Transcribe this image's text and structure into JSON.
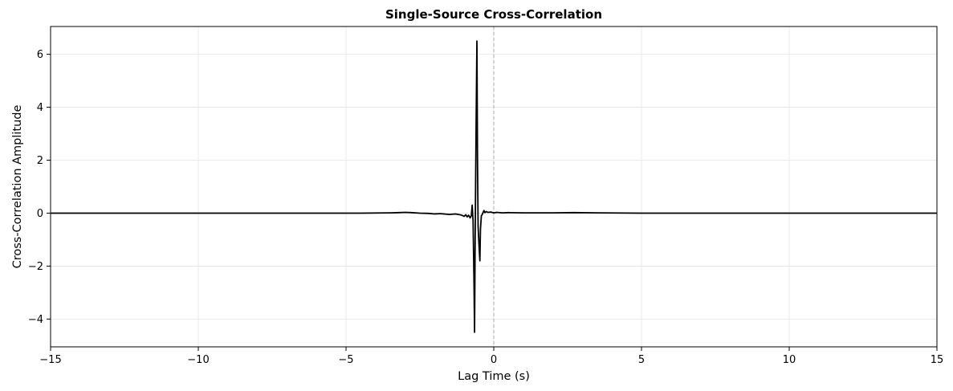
{
  "chart_data": {
    "type": "line",
    "title": "Single-Source Cross-Correlation",
    "xlabel": "Lag Time (s)",
    "ylabel": "Cross-Correlation Amplitude",
    "xlim": [
      -15,
      15
    ],
    "ylim": [
      -5.05,
      7.05
    ],
    "xticks": [
      -15,
      -10,
      -5,
      0,
      5,
      10,
      15
    ],
    "xtick_labels": [
      "−15",
      "−10",
      "−5",
      "0",
      "5",
      "10",
      "15"
    ],
    "yticks": [
      -4,
      -2,
      0,
      2,
      4,
      6
    ],
    "ytick_labels": [
      "−4",
      "−2",
      "0",
      "2",
      "4",
      "6"
    ],
    "grid": true,
    "reference_line": {
      "x": 0,
      "style": "dashed",
      "color": "#aaaaaa"
    },
    "series": [
      {
        "color": "#000000",
        "x": [
          -15,
          -12,
          -10,
          -8,
          -6,
          -4.5,
          -3.5,
          -3.2,
          -3.0,
          -2.8,
          -2.5,
          -2.2,
          -2.0,
          -1.8,
          -1.5,
          -1.3,
          -1.1,
          -1.0,
          -0.95,
          -0.9,
          -0.85,
          -0.8,
          -0.76,
          -0.73,
          -0.7,
          -0.67,
          -0.65,
          -0.63,
          -0.6,
          -0.57,
          -0.55,
          -0.53,
          -0.5,
          -0.47,
          -0.45,
          -0.42,
          -0.39,
          -0.36,
          -0.33,
          -0.3,
          -0.25,
          -0.2,
          -0.1,
          0.0,
          0.1,
          0.3,
          0.5,
          1.0,
          2.0,
          2.7,
          3.5,
          5.0,
          8.0,
          12.0,
          15.0
        ],
        "y": [
          0.0,
          0.0,
          0.0,
          0.0,
          0.0,
          0.0,
          0.01,
          0.02,
          0.03,
          0.02,
          0.0,
          -0.01,
          -0.03,
          -0.02,
          -0.05,
          -0.03,
          -0.07,
          -0.12,
          -0.06,
          -0.14,
          -0.08,
          -0.18,
          -0.1,
          0.3,
          -0.3,
          -2.5,
          -4.5,
          -1.0,
          3.0,
          6.5,
          2.0,
          -0.5,
          -1.2,
          -1.8,
          -0.6,
          -0.1,
          -0.05,
          0.03,
          0.1,
          0.02,
          0.06,
          0.03,
          0.04,
          0.01,
          0.03,
          0.01,
          0.02,
          0.01,
          0.01,
          0.02,
          0.01,
          0.0,
          0.0,
          0.0,
          0.0
        ]
      }
    ]
  }
}
